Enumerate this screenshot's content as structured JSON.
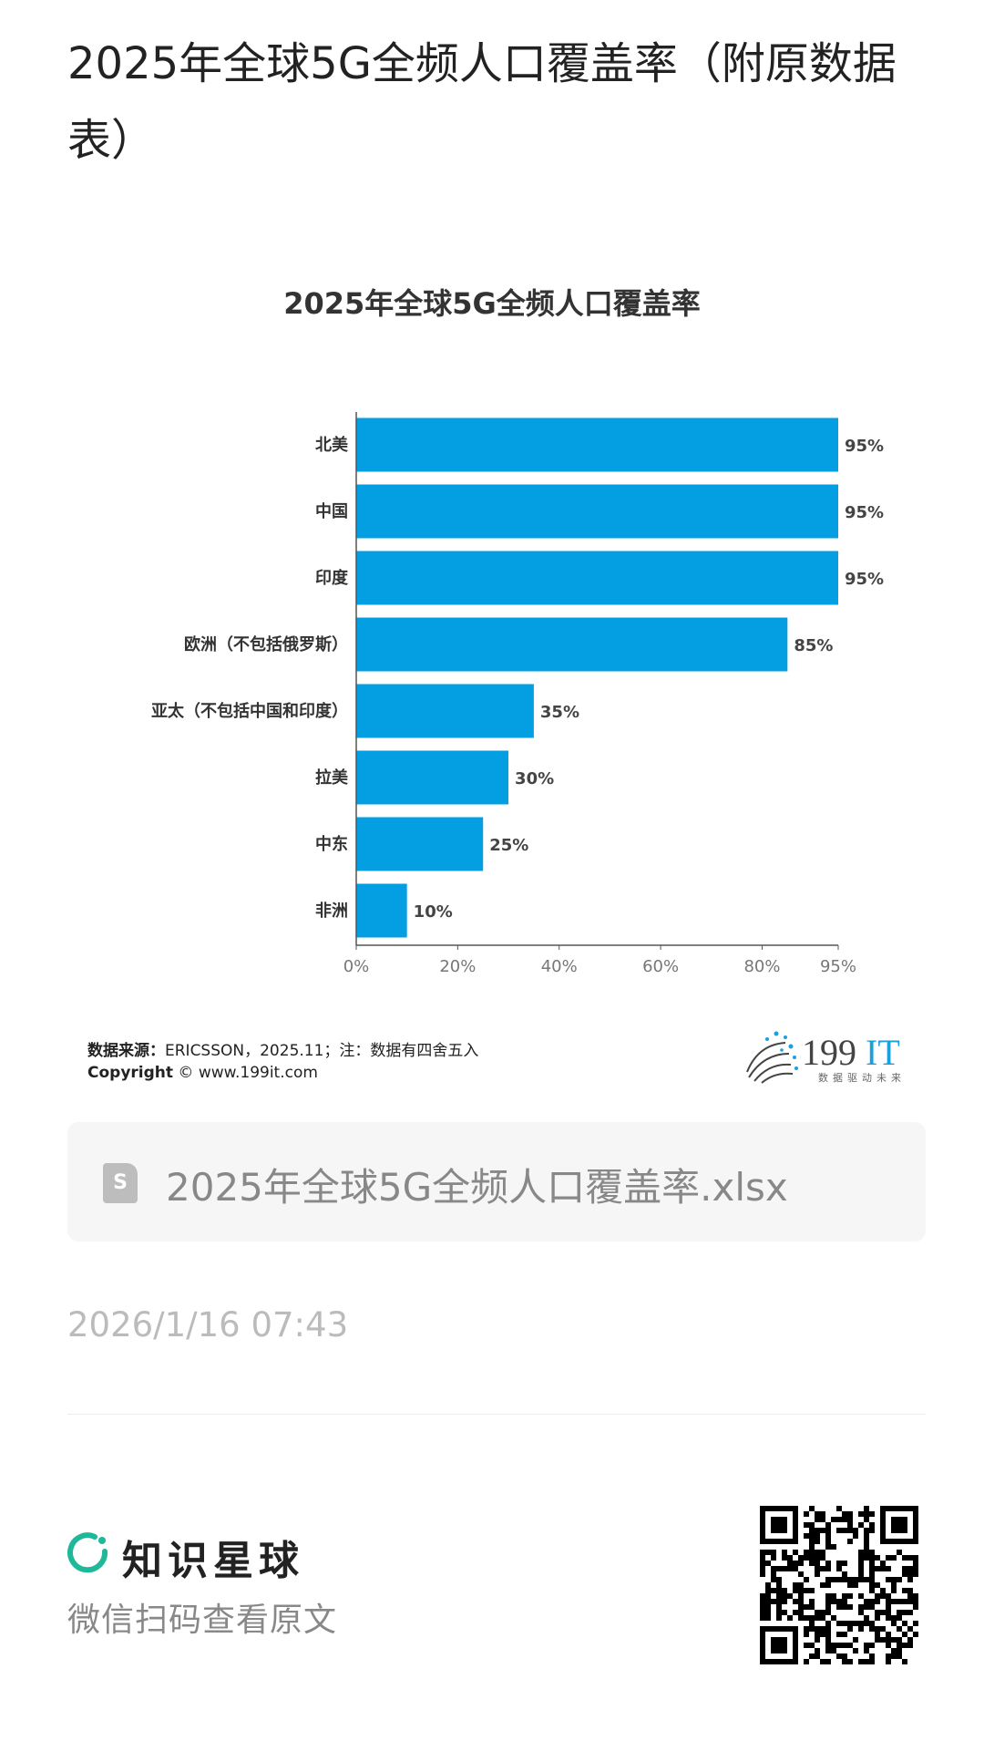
{
  "page": {
    "title": "2025年全球5G全频人口覆盖率（附原数据表）"
  },
  "chart_data": {
    "type": "bar",
    "orientation": "horizontal",
    "title": "2025年全球5G全频人口覆盖率",
    "categories": [
      "北美",
      "中国",
      "印度",
      "欧洲（不包括俄罗斯）",
      "亚太（不包括中国和印度）",
      "拉美",
      "中东",
      "非洲"
    ],
    "values": [
      95,
      95,
      95,
      85,
      35,
      30,
      25,
      10
    ],
    "value_labels": [
      "95%",
      "95%",
      "95%",
      "85%",
      "35%",
      "30%",
      "25%",
      "10%"
    ],
    "x_ticks": [
      0,
      20,
      40,
      60,
      80,
      95
    ],
    "x_tick_labels": [
      "0%",
      "20%",
      "40%",
      "60%",
      "80%",
      "95%"
    ],
    "xlim": [
      0,
      95
    ],
    "xlabel": "",
    "ylabel": "",
    "grid": false,
    "bar_color": "#049fe2"
  },
  "source": {
    "label": "数据来源：",
    "text": "ERICSSON，2025.11；注：数据有四舍五入",
    "copyright_label": "Copyright",
    "copyright_text": "© www.199it.com"
  },
  "logo": {
    "name": "199IT",
    "slogan": "数据驱动未来"
  },
  "attachment": {
    "icon": "spreadsheet-icon",
    "icon_letter": "S",
    "filename": "2025年全球5G全频人口覆盖率.xlsx"
  },
  "timestamp": "2026/1/16 07:43",
  "footer": {
    "brand": "知识星球",
    "brand_color": "#1fb99a",
    "scan_text": "微信扫码查看原文"
  }
}
